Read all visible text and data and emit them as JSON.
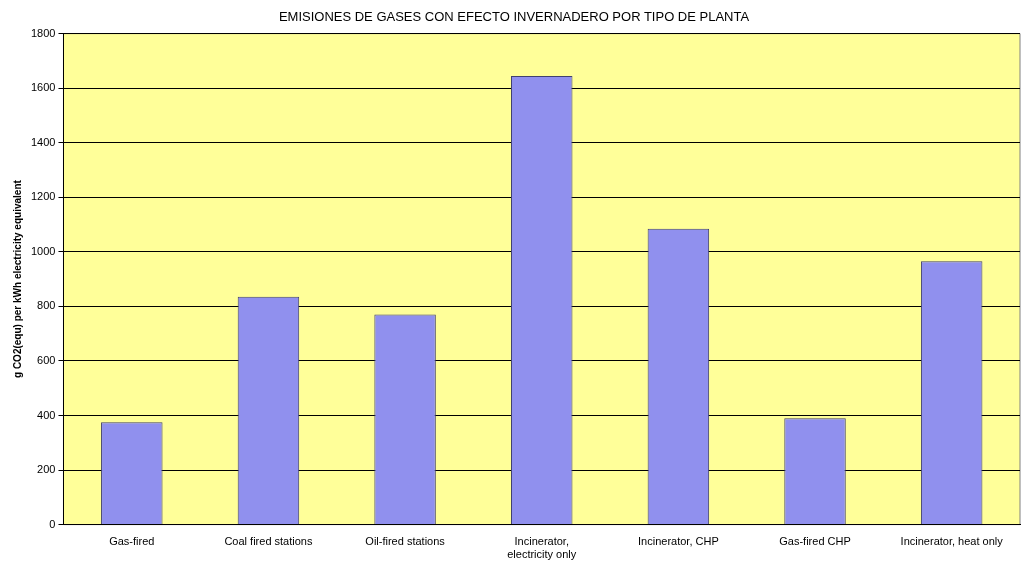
{
  "chart_data": {
    "type": "bar",
    "title": "EMISIONES DE GASES CON EFECTO INVERNADERO POR TIPO DE PLANTA",
    "ylabel": "g CO2(equ) per kWh electricity equivalent",
    "categories": [
      "Gas-fired",
      "Coal fired stations",
      "Oil-fired stations",
      "Incinerator, electricity only",
      "Incinerator, CHP",
      "Gas-fired CHP",
      "Incinerator, heat only"
    ],
    "values": [
      375,
      835,
      770,
      1645,
      1085,
      390,
      965
    ],
    "color": "#9090ee",
    "ylim": [
      0,
      1800
    ],
    "yticks": [
      0,
      200,
      400,
      600,
      800,
      1000,
      1200,
      1400,
      1600,
      1800
    ],
    "grid": "y",
    "legend": false
  }
}
